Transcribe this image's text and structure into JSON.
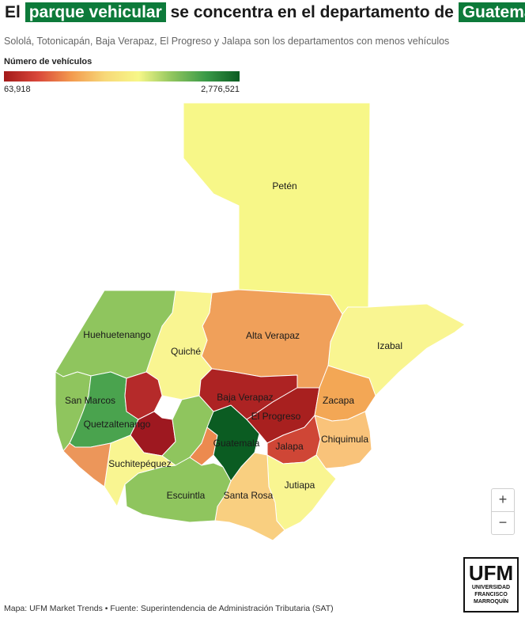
{
  "title": {
    "part1": "El ",
    "highlight1": "parque vehicular",
    "part2": " se concentra en el departamento de ",
    "highlight2": "Guatemala"
  },
  "subtitle": "Sololá, Totonicapán, Baja Verapaz, El Progreso y Jalapa son los departamentos con menos vehículos",
  "legend": {
    "title": "Número de vehículos",
    "min_label": "63,918",
    "max_label": "2,776,521",
    "gradient": [
      "#a31a1a",
      "#d9473a",
      "#f39a4f",
      "#f7d878",
      "#f7f788",
      "#8fc55e",
      "#3a9a48",
      "#0b5c22"
    ]
  },
  "colors": {
    "highlight": "#0d7a3a",
    "peten": "#f7f788",
    "izabal": "#f9f591",
    "alta_verapaz": "#f0a05a",
    "quiche": "#f9f591",
    "huehuetenango": "#8fc55e",
    "san_marcos": "#8fc55e",
    "quetzaltenango": "#4aa34e",
    "totonicapan": "#b52a2a",
    "solola": "#9e1820",
    "chimaltenango": "#8fc55e",
    "sacatepequez": "#ec8a4f",
    "guatemala": "#0b5c22",
    "baja_verapaz": "#ad2323",
    "el_progreso": "#a8201f",
    "zacapa": "#f3a755",
    "chiquimula": "#f9c37a",
    "jalapa": "#cf4636",
    "jutiapa": "#f9f591",
    "santa_rosa": "#f9cf80",
    "escuintla": "#8fc55e",
    "suchitepequez": "#f9f591",
    "retalhuleu": "#ec965a"
  },
  "map": {
    "labels": {
      "peten": "Petén",
      "izabal": "Izabal",
      "alta_verapaz": "Alta Verapaz",
      "quiche": "Quiché",
      "huehuetenango": "Huehuetenango",
      "san_marcos": "San Marcos",
      "quetzaltenango": "Quetzaltenango",
      "baja_verapaz": "Baja Verapaz",
      "el_progreso": "El Progreso",
      "zacapa": "Zacapa",
      "chiquimula": "Chiquimula",
      "guatemala": "Guatemala",
      "jalapa": "Jalapa",
      "suchitepequez": "Suchitepéquez",
      "jutiapa": "Jutiapa",
      "santa_rosa": "Santa Rosa",
      "escuintla": "Escuintla"
    }
  },
  "controls": {
    "zoom_in": "+",
    "zoom_out": "−"
  },
  "footer": "Mapa: UFM Market Trends • Fuente: Superintendencia de Administración Tributaria (SAT)",
  "logo": {
    "main": "UFM",
    "line1": "UNIVERSIDAD",
    "line2": "FRANCISCO",
    "line3": "MARROQUÍN"
  }
}
